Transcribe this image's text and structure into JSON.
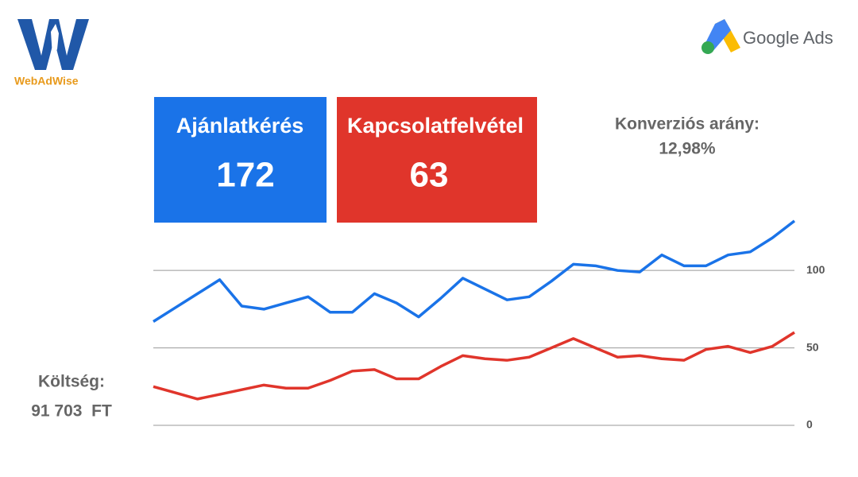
{
  "logo": {
    "text": "WebAdWise"
  },
  "brand": {
    "text": "Google Ads"
  },
  "cards": [
    {
      "title": "Ajánlatkérés",
      "value": 172,
      "color": "#1a73e8"
    },
    {
      "title": "Kapcsolatfelvétel",
      "value": 63,
      "color": "#e0352b"
    }
  ],
  "conversion": {
    "label": "Konverziós arány:",
    "value": "12,98%"
  },
  "cost": {
    "label": "Költség:",
    "value": "91 703  FT"
  },
  "chart_data": {
    "type": "line",
    "categories": [
      null,
      null,
      null,
      null,
      null,
      null,
      null,
      null,
      null,
      null,
      null,
      null,
      null,
      null,
      null,
      null,
      null,
      null,
      null,
      null,
      null,
      null,
      null,
      null,
      null,
      null,
      null,
      null,
      null,
      null
    ],
    "series": [
      {
        "color": "#1a73e8",
        "values": [
          67,
          76,
          85,
          94,
          77,
          75,
          79,
          83,
          73,
          73,
          85,
          79,
          70,
          82,
          95,
          88,
          81,
          83,
          93,
          104,
          103,
          100,
          99,
          110,
          103,
          103,
          110,
          112,
          121,
          132
        ]
      },
      {
        "color": "#e0352b",
        "values": [
          25,
          21,
          17,
          20,
          23,
          26,
          24,
          24,
          29,
          35,
          36,
          30,
          30,
          38,
          45,
          43,
          42,
          44,
          50,
          56,
          50,
          44,
          45,
          43,
          42,
          49,
          51,
          47,
          51,
          60
        ]
      }
    ],
    "ylim": [
      0,
      135
    ],
    "yticks": [
      0,
      50,
      100
    ],
    "grid": true
  }
}
